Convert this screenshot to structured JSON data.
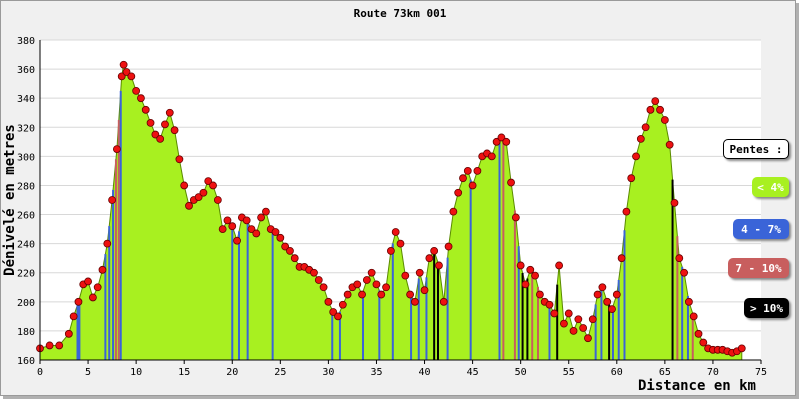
{
  "chart_data": {
    "type": "area",
    "title": "Route 73km 001",
    "xlabel": "Distance en km",
    "ylabel": "Dénivelé en metres",
    "xlim": [
      0,
      75
    ],
    "ylim": [
      160,
      380
    ],
    "x_ticks": [
      0,
      5,
      10,
      15,
      20,
      25,
      30,
      35,
      40,
      45,
      50,
      55,
      60,
      65,
      70,
      75
    ],
    "y_ticks": [
      160,
      180,
      200,
      220,
      240,
      260,
      280,
      300,
      320,
      340,
      360,
      380
    ],
    "grid": true,
    "legend_title": "Pentes :",
    "legend": [
      {
        "label": "< 4%",
        "color": "#a8f020"
      },
      {
        "label": "4 - 7%",
        "color": "#3a64d8"
      },
      {
        "label": "7 - 10%",
        "color": "#c85e5e"
      },
      {
        "label": "> 10%",
        "color": "#000000"
      }
    ],
    "legend_position": "right",
    "colors": {
      "fill": "#a8f020",
      "marker": "#ee1111",
      "marker_edge": "#660000",
      "background": "#f0f0f0"
    },
    "profile": [
      [
        0,
        168
      ],
      [
        1.0,
        170
      ],
      [
        2.0,
        170
      ],
      [
        3.0,
        178
      ],
      [
        3.5,
        190
      ],
      [
        4.0,
        200
      ],
      [
        4.5,
        212
      ],
      [
        5.0,
        214
      ],
      [
        5.5,
        203
      ],
      [
        6.0,
        210
      ],
      [
        6.5,
        222
      ],
      [
        7.0,
        240
      ],
      [
        7.5,
        270
      ],
      [
        8.0,
        305
      ],
      [
        8.5,
        355
      ],
      [
        8.7,
        363
      ],
      [
        9.0,
        358
      ],
      [
        9.5,
        355
      ],
      [
        10.0,
        345
      ],
      [
        10.5,
        340
      ],
      [
        11.0,
        332
      ],
      [
        11.5,
        323
      ],
      [
        12.0,
        315
      ],
      [
        12.5,
        312
      ],
      [
        13.0,
        322
      ],
      [
        13.5,
        330
      ],
      [
        14.0,
        318
      ],
      [
        14.5,
        298
      ],
      [
        15.0,
        280
      ],
      [
        15.5,
        266
      ],
      [
        16.0,
        270
      ],
      [
        16.5,
        272
      ],
      [
        17.0,
        275
      ],
      [
        17.5,
        283
      ],
      [
        18.0,
        280
      ],
      [
        18.5,
        270
      ],
      [
        19.0,
        250
      ],
      [
        19.5,
        256
      ],
      [
        20.0,
        252
      ],
      [
        20.5,
        242
      ],
      [
        21.0,
        258
      ],
      [
        21.5,
        256
      ],
      [
        22.0,
        250
      ],
      [
        22.5,
        247
      ],
      [
        23.0,
        258
      ],
      [
        23.5,
        262
      ],
      [
        24.0,
        250
      ],
      [
        24.5,
        248
      ],
      [
        25.0,
        244
      ],
      [
        25.5,
        238
      ],
      [
        26.0,
        235
      ],
      [
        26.5,
        230
      ],
      [
        27.0,
        224
      ],
      [
        27.5,
        224
      ],
      [
        28.0,
        222
      ],
      [
        28.5,
        220
      ],
      [
        29.0,
        215
      ],
      [
        29.5,
        210
      ],
      [
        30.0,
        200
      ],
      [
        30.5,
        193
      ],
      [
        31.0,
        190
      ],
      [
        31.5,
        198
      ],
      [
        32.0,
        205
      ],
      [
        32.5,
        210
      ],
      [
        33.0,
        212
      ],
      [
        33.5,
        205
      ],
      [
        34.0,
        215
      ],
      [
        34.5,
        220
      ],
      [
        35.0,
        212
      ],
      [
        35.5,
        205
      ],
      [
        36.0,
        210
      ],
      [
        36.5,
        235
      ],
      [
        37.0,
        248
      ],
      [
        37.5,
        240
      ],
      [
        38.0,
        218
      ],
      [
        38.5,
        205
      ],
      [
        39.0,
        200
      ],
      [
        39.5,
        220
      ],
      [
        40.0,
        208
      ],
      [
        40.5,
        230
      ],
      [
        41.0,
        235
      ],
      [
        41.5,
        225
      ],
      [
        42.0,
        200
      ],
      [
        42.5,
        238
      ],
      [
        43.0,
        262
      ],
      [
        43.5,
        275
      ],
      [
        44.0,
        285
      ],
      [
        44.5,
        290
      ],
      [
        45.0,
        280
      ],
      [
        45.5,
        290
      ],
      [
        46.0,
        300
      ],
      [
        46.5,
        302
      ],
      [
        47.0,
        300
      ],
      [
        47.5,
        310
      ],
      [
        48.0,
        313
      ],
      [
        48.5,
        310
      ],
      [
        49.0,
        282
      ],
      [
        49.5,
        258
      ],
      [
        50.0,
        225
      ],
      [
        50.5,
        212
      ],
      [
        51.0,
        222
      ],
      [
        51.5,
        218
      ],
      [
        52.0,
        205
      ],
      [
        52.5,
        200
      ],
      [
        53.0,
        198
      ],
      [
        53.5,
        192
      ],
      [
        54.0,
        225
      ],
      [
        54.5,
        185
      ],
      [
        55.0,
        192
      ],
      [
        55.5,
        180
      ],
      [
        56.0,
        188
      ],
      [
        56.5,
        182
      ],
      [
        57.0,
        175
      ],
      [
        57.5,
        188
      ],
      [
        58.0,
        205
      ],
      [
        58.5,
        210
      ],
      [
        59.0,
        200
      ],
      [
        59.5,
        195
      ],
      [
        60.0,
        205
      ],
      [
        60.5,
        230
      ],
      [
        61.0,
        262
      ],
      [
        61.5,
        285
      ],
      [
        62.0,
        300
      ],
      [
        62.5,
        312
      ],
      [
        63.0,
        320
      ],
      [
        63.5,
        332
      ],
      [
        64.0,
        338
      ],
      [
        64.5,
        332
      ],
      [
        65.0,
        325
      ],
      [
        65.5,
        308
      ],
      [
        66.0,
        268
      ],
      [
        66.5,
        230
      ],
      [
        67.0,
        220
      ],
      [
        67.5,
        200
      ],
      [
        68.0,
        190
      ],
      [
        68.5,
        178
      ],
      [
        69.0,
        172
      ],
      [
        69.5,
        168
      ],
      [
        70.0,
        167
      ],
      [
        70.5,
        167
      ],
      [
        71.0,
        167
      ],
      [
        71.5,
        166
      ],
      [
        72.0,
        165
      ],
      [
        72.5,
        166
      ],
      [
        73.0,
        168
      ]
    ],
    "steep_segments": [
      [
        3.9,
        "4 - 7%"
      ],
      [
        4.1,
        "4 - 7%"
      ],
      [
        6.8,
        "4 - 7%"
      ],
      [
        7.2,
        "4 - 7%"
      ],
      [
        7.6,
        "4 - 7%"
      ],
      [
        7.9,
        "7 - 10%"
      ],
      [
        8.2,
        "7 - 10%"
      ],
      [
        8.4,
        "4 - 7%"
      ],
      [
        20.0,
        "4 - 7%"
      ],
      [
        20.7,
        "4 - 7%"
      ],
      [
        21.6,
        "4 - 7%"
      ],
      [
        24.2,
        "4 - 7%"
      ],
      [
        30.4,
        "4 - 7%"
      ],
      [
        31.2,
        "4 - 7%"
      ],
      [
        33.6,
        "4 - 7%"
      ],
      [
        35.3,
        "4 - 7%"
      ],
      [
        36.7,
        "4 - 7%"
      ],
      [
        38.6,
        "4 - 7%"
      ],
      [
        39.4,
        "4 - 7%"
      ],
      [
        40.2,
        "4 - 7%"
      ],
      [
        41.0,
        "> 10%"
      ],
      [
        41.4,
        "> 10%"
      ],
      [
        42.4,
        "4 - 7%"
      ],
      [
        44.8,
        "4 - 7%"
      ],
      [
        47.8,
        "4 - 7%"
      ],
      [
        48.2,
        "7 - 10%"
      ],
      [
        49.4,
        "7 - 10%"
      ],
      [
        49.8,
        "4 - 7%"
      ],
      [
        50.2,
        "> 10%"
      ],
      [
        50.7,
        "> 10%"
      ],
      [
        51.2,
        "7 - 10%"
      ],
      [
        51.8,
        "7 - 10%"
      ],
      [
        53.0,
        "4 - 7%"
      ],
      [
        53.8,
        "> 10%"
      ],
      [
        57.8,
        "4 - 7%"
      ],
      [
        58.4,
        "4 - 7%"
      ],
      [
        59.2,
        "> 10%"
      ],
      [
        59.6,
        "4 - 7%"
      ],
      [
        60.2,
        "4 - 7%"
      ],
      [
        60.8,
        "4 - 7%"
      ],
      [
        65.8,
        "> 10%"
      ],
      [
        66.3,
        "7 - 10%"
      ],
      [
        66.8,
        "4 - 7%"
      ],
      [
        67.4,
        "4 - 7%"
      ],
      [
        67.9,
        "7 - 10%"
      ]
    ]
  }
}
